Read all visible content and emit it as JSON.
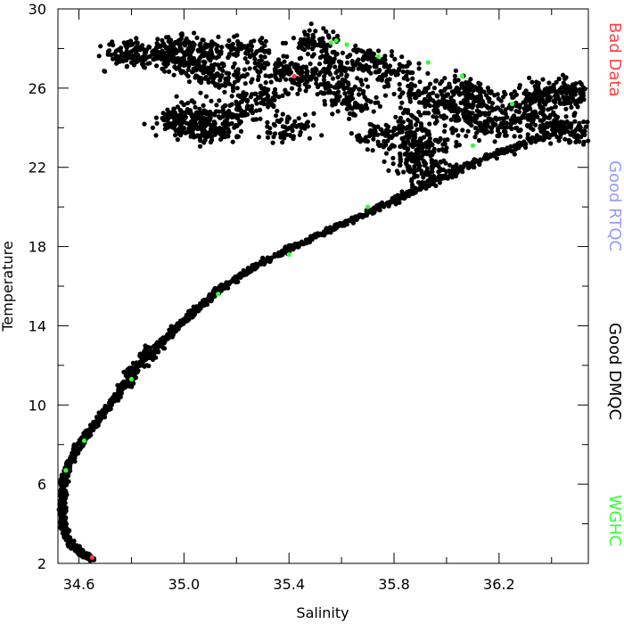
{
  "chart_data": {
    "type": "scatter",
    "xlabel": "Salinity",
    "ylabel": "Temperature",
    "xlim": [
      34.52,
      36.54
    ],
    "ylim": [
      2,
      30
    ],
    "xticks": [
      "34.6",
      "35.0",
      "35.4",
      "35.8",
      "36.2"
    ],
    "yticks": [
      "2",
      "6",
      "10",
      "14",
      "18",
      "22",
      "26",
      "30"
    ],
    "grid": false,
    "legend_placement": "right-side, vertical",
    "legend": [
      {
        "label": "Bad Data",
        "color": "#ff4040"
      },
      {
        "label": "Good RTQC",
        "color": "#9999ff"
      },
      {
        "label": "Good DMQC",
        "color": "#000000"
      },
      {
        "label": "WGHC",
        "color": "#33ff33"
      }
    ],
    "series": [
      {
        "name": "Good DMQC",
        "color": "#000000",
        "curve_points": [
          [
            34.65,
            2.2
          ],
          [
            34.6,
            2.6
          ],
          [
            34.56,
            3.2
          ],
          [
            34.54,
            4.0
          ],
          [
            34.535,
            5.0
          ],
          [
            34.54,
            6.0
          ],
          [
            34.56,
            7.0
          ],
          [
            34.6,
            8.0
          ],
          [
            34.66,
            9.0
          ],
          [
            34.72,
            10.0
          ],
          [
            34.77,
            11.0
          ],
          [
            34.83,
            12.0
          ],
          [
            34.9,
            13.0
          ],
          [
            34.98,
            14.0
          ],
          [
            35.06,
            15.0
          ],
          [
            35.15,
            16.0
          ],
          [
            35.27,
            17.0
          ],
          [
            35.42,
            18.0
          ],
          [
            35.58,
            19.0
          ],
          [
            35.75,
            20.0
          ],
          [
            35.9,
            21.0
          ],
          [
            36.06,
            22.0
          ],
          [
            36.25,
            23.0
          ],
          [
            36.46,
            24.0
          ]
        ],
        "cloud_points": [
          [
            35.45,
            26.5
          ],
          [
            35.55,
            27.2
          ],
          [
            35.6,
            26.0
          ],
          [
            35.7,
            27.5
          ],
          [
            35.8,
            26.8
          ],
          [
            35.35,
            27.0
          ],
          [
            35.25,
            28.0
          ],
          [
            35.1,
            27.8
          ],
          [
            35.0,
            28.2
          ],
          [
            35.5,
            28.3
          ],
          [
            35.9,
            25.5
          ],
          [
            36.0,
            25.0
          ],
          [
            36.1,
            24.5
          ],
          [
            36.2,
            24.0
          ],
          [
            36.3,
            24.8
          ],
          [
            36.4,
            24.2
          ],
          [
            36.48,
            23.8
          ],
          [
            35.85,
            24.0
          ],
          [
            35.95,
            23.2
          ],
          [
            36.05,
            26.0
          ],
          [
            35.3,
            25.5
          ],
          [
            35.2,
            24.8
          ],
          [
            35.4,
            24.0
          ],
          [
            35.65,
            25.2
          ],
          [
            35.75,
            23.5
          ],
          [
            35.15,
            26.5
          ],
          [
            35.05,
            27.0
          ],
          [
            34.95,
            27.6
          ],
          [
            34.85,
            27.8
          ],
          [
            34.78,
            27.7
          ],
          [
            35.02,
            24.6
          ],
          [
            35.07,
            24.0
          ],
          [
            35.12,
            23.8
          ],
          [
            34.98,
            24.3
          ],
          [
            36.5,
            25.5
          ],
          [
            36.44,
            25.9
          ],
          [
            36.35,
            25.6
          ],
          [
            36.15,
            25.4
          ],
          [
            35.88,
            22.5
          ],
          [
            35.92,
            21.8
          ]
        ],
        "cloud_count": 2600
      },
      {
        "name": "WGHC",
        "color": "#33ff33",
        "points": [
          [
            35.56,
            28.3
          ],
          [
            35.58,
            28.4
          ],
          [
            35.62,
            28.2
          ],
          [
            35.74,
            27.6
          ],
          [
            35.93,
            27.3
          ],
          [
            36.06,
            26.6
          ],
          [
            36.25,
            25.2
          ],
          [
            36.1,
            23.1
          ],
          [
            35.7,
            20.0
          ],
          [
            35.4,
            17.6
          ],
          [
            35.13,
            15.6
          ],
          [
            34.8,
            11.3
          ],
          [
            34.62,
            8.2
          ],
          [
            34.55,
            6.7
          ]
        ]
      },
      {
        "name": "Bad Data",
        "color": "#ff4040",
        "points": [
          [
            35.42,
            26.6
          ],
          [
            34.65,
            2.3
          ]
        ]
      }
    ]
  }
}
